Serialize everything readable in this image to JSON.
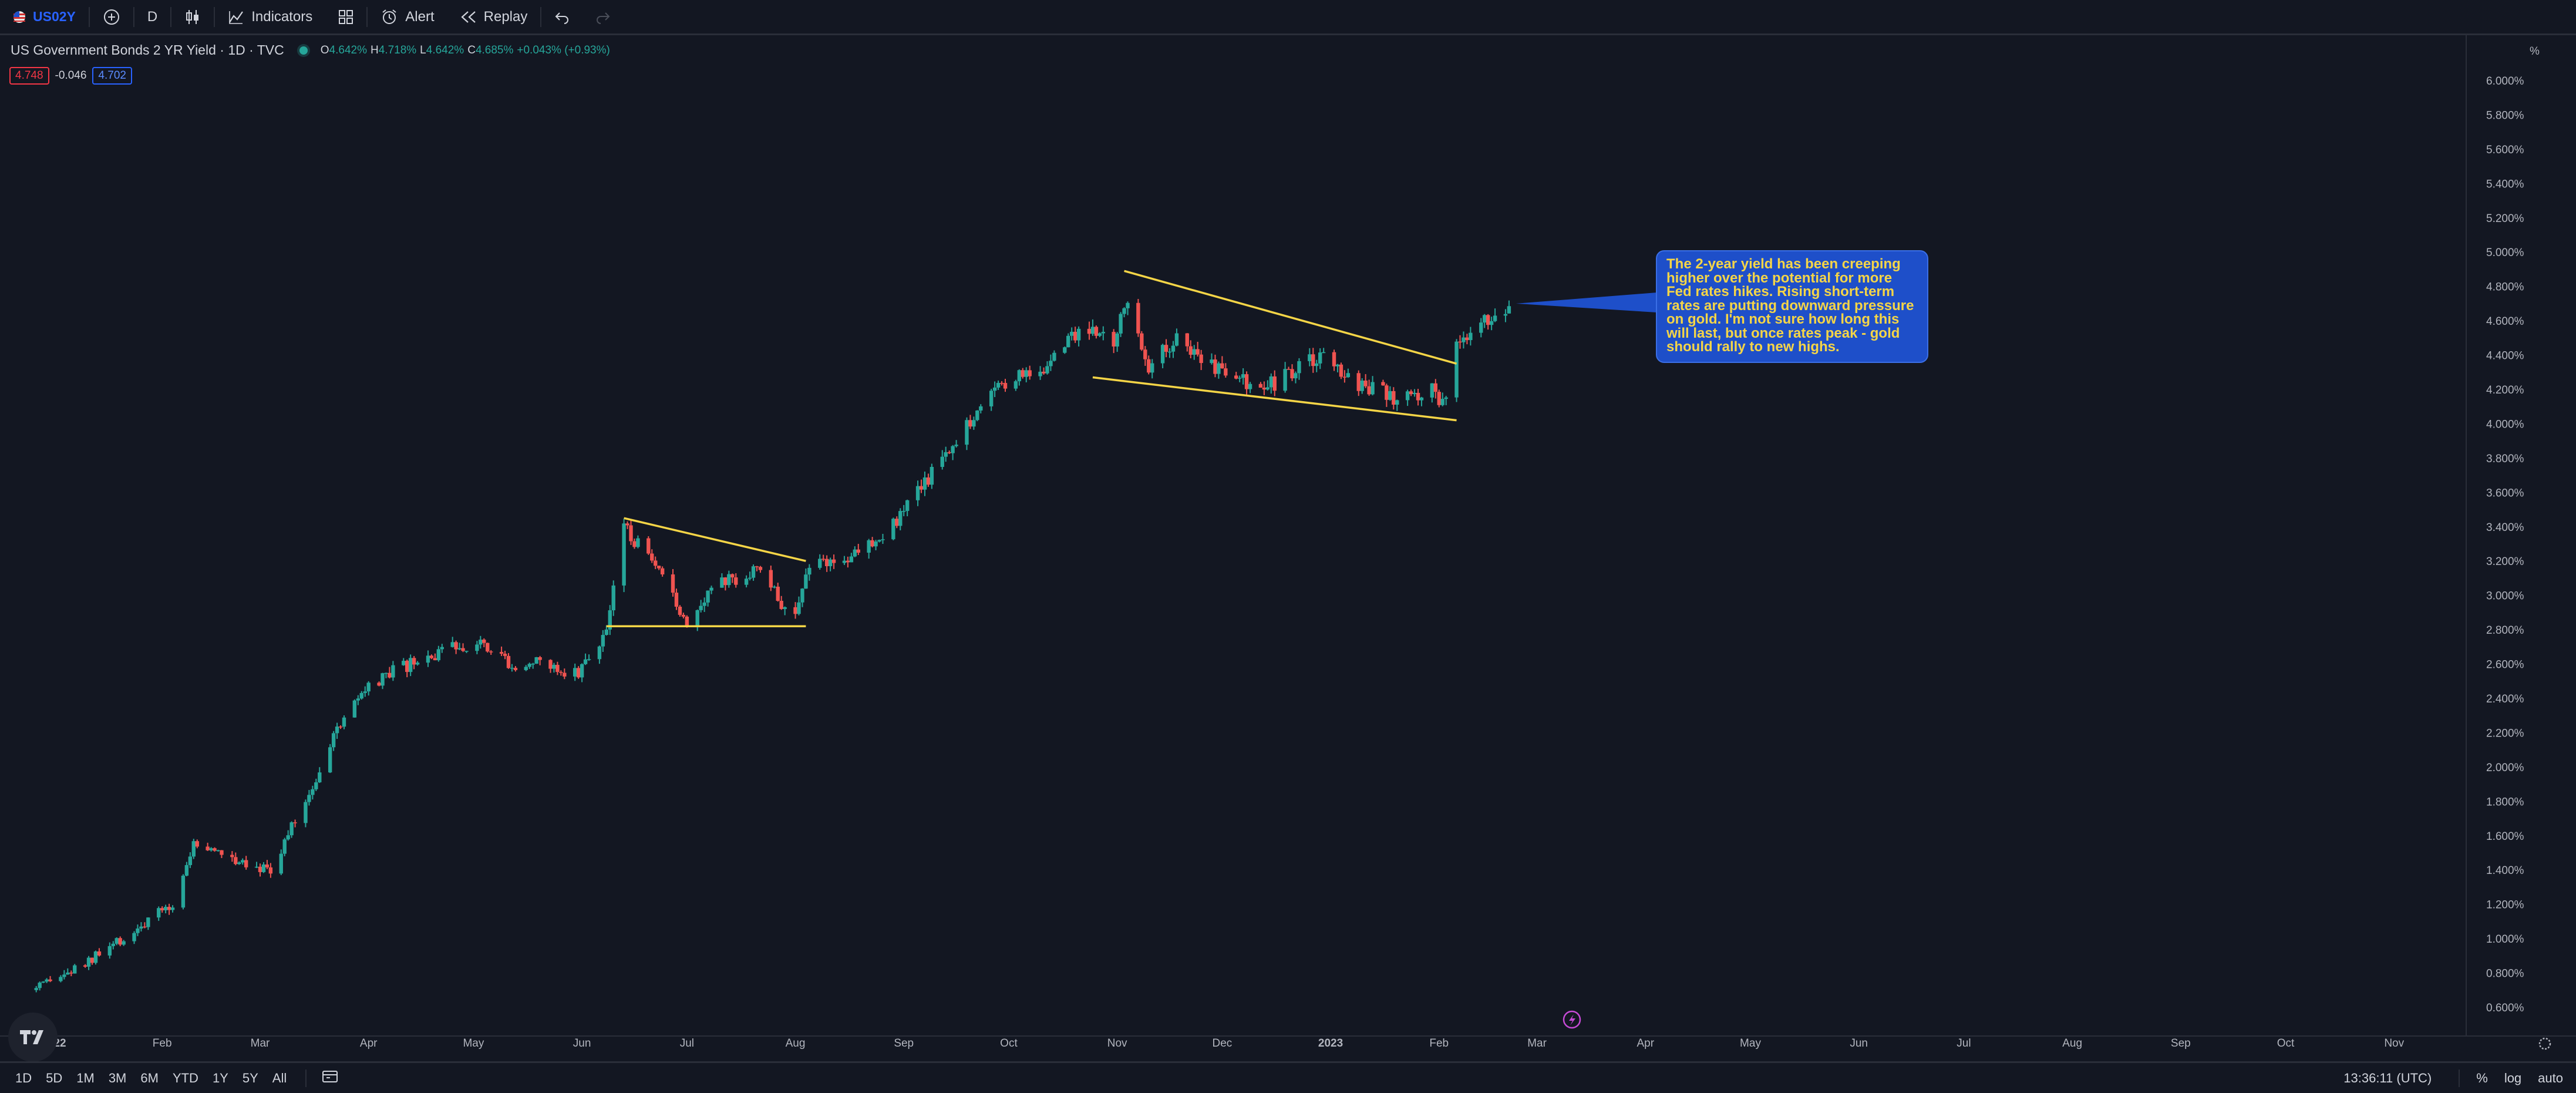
{
  "toolbar": {
    "symbol": "US02Y",
    "interval": "D",
    "indicators_label": "Indicators",
    "alert_label": "Alert",
    "replay_label": "Replay",
    "icons": [
      "add-symbol-icon",
      "candle-style-icon",
      "indicators-icon",
      "layouts-icon",
      "alert-clock-icon",
      "replay-icon",
      "undo-icon",
      "redo-icon"
    ]
  },
  "legend": {
    "title": "US Government Bonds 2 YR Yield · 1D · TVC",
    "open_label": "O",
    "open": "4.642%",
    "high_label": "H",
    "high": "4.718%",
    "low_label": "L",
    "low": "4.642%",
    "close_label": "C",
    "close": "4.685%",
    "change": "+0.043% (+0.93%)",
    "bid": "4.748",
    "spread": "-0.046",
    "ask": "4.702"
  },
  "callout": {
    "text": "The 2-year yield has been creeping higher over the potential for more Fed rates hikes. Rising short-term rates are putting downward pressure on gold. I'm not sure how long this will last, but once rates peak - gold should rally to new highs."
  },
  "price_axis": {
    "unit": "%",
    "labels": [
      "6.000%",
      "5.800%",
      "5.600%",
      "5.400%",
      "5.200%",
      "5.000%",
      "4.800%",
      "4.600%",
      "4.400%",
      "4.200%",
      "4.000%",
      "3.800%",
      "3.600%",
      "3.400%",
      "3.200%",
      "3.000%",
      "2.800%",
      "2.600%",
      "2.400%",
      "2.200%",
      "2.000%",
      "1.800%",
      "1.600%",
      "1.400%",
      "1.200%",
      "1.000%",
      "0.800%",
      "0.600%"
    ]
  },
  "time_axis": {
    "labels": [
      "2022",
      "Feb",
      "Mar",
      "Apr",
      "May",
      "Jun",
      "Jul",
      "Aug",
      "Sep",
      "Oct",
      "Nov",
      "Dec",
      "2023",
      "Feb",
      "Mar",
      "Apr",
      "May",
      "Jun",
      "Jul",
      "Aug",
      "Sep",
      "Oct",
      "Nov"
    ]
  },
  "bottom": {
    "ranges": [
      "1D",
      "5D",
      "1M",
      "3M",
      "6M",
      "YTD",
      "1Y",
      "5Y",
      "All"
    ],
    "clock": "13:36:11 (UTC)",
    "percent_label": "%",
    "log_label": "log",
    "auto_label": "auto"
  },
  "colors": {
    "up": "#26a69a",
    "down": "#ef5350",
    "trendline": "#f5d547",
    "background": "#131722",
    "callout": "#1e4fc9"
  },
  "chart_data": {
    "type": "candlestick",
    "ylim": [
      0.5,
      6.1
    ],
    "x_range": [
      "2021-12-20",
      "2023-11-30"
    ],
    "grid": false,
    "anchors": [
      [
        "2021-12-27",
        0.7
      ],
      [
        "2022-01-10",
        0.85
      ],
      [
        "2022-01-21",
        1.0
      ],
      [
        "2022-02-04",
        1.2
      ],
      [
        "2022-02-10",
        1.55
      ],
      [
        "2022-02-17",
        1.5
      ],
      [
        "2022-02-25",
        1.45
      ],
      [
        "2022-03-04",
        1.4
      ],
      [
        "2022-03-15",
        1.85
      ],
      [
        "2022-03-25",
        2.3
      ],
      [
        "2022-04-01",
        2.45
      ],
      [
        "2022-04-08",
        2.55
      ],
      [
        "2022-04-20",
        2.65
      ],
      [
        "2022-05-03",
        2.75
      ],
      [
        "2022-05-12",
        2.6
      ],
      [
        "2022-05-20",
        2.6
      ],
      [
        "2022-05-31",
        2.55
      ],
      [
        "2022-06-08",
        2.8
      ],
      [
        "2022-06-13",
        3.4
      ],
      [
        "2022-06-22",
        3.15
      ],
      [
        "2022-07-01",
        2.85
      ],
      [
        "2022-07-08",
        3.05
      ],
      [
        "2022-07-21",
        3.15
      ],
      [
        "2022-08-01",
        2.85
      ],
      [
        "2022-08-05",
        3.2
      ],
      [
        "2022-08-15",
        3.2
      ],
      [
        "2022-08-31",
        3.45
      ],
      [
        "2022-09-15",
        3.9
      ],
      [
        "2022-09-29",
        4.25
      ],
      [
        "2022-10-10",
        4.3
      ],
      [
        "2022-10-21",
        4.55
      ],
      [
        "2022-10-31",
        4.5
      ],
      [
        "2022-11-04",
        4.7
      ],
      [
        "2022-11-10",
        4.35
      ],
      [
        "2022-11-18",
        4.5
      ],
      [
        "2022-12-01",
        4.3
      ],
      [
        "2022-12-13",
        4.2
      ],
      [
        "2022-12-30",
        4.4
      ],
      [
        "2023-01-06",
        4.25
      ],
      [
        "2023-01-19",
        4.15
      ],
      [
        "2023-01-31",
        4.2
      ],
      [
        "2023-02-02",
        4.1
      ],
      [
        "2023-02-06",
        4.45
      ],
      [
        "2023-02-10",
        4.5
      ],
      [
        "2023-02-16",
        4.62
      ],
      [
        "2023-02-21",
        4.685
      ]
    ],
    "last": {
      "open": 4.642,
      "high": 4.718,
      "low": 4.642,
      "close": 4.685
    },
    "trendlines": [
      {
        "from": [
          "2022-06-13",
          3.45
        ],
        "to": [
          "2022-08-04",
          3.2
        ]
      },
      {
        "from": [
          "2022-06-08",
          2.82
        ],
        "to": [
          "2022-08-04",
          2.82
        ]
      },
      {
        "from": [
          "2022-11-03",
          4.89
        ],
        "to": [
          "2023-02-06",
          4.35
        ]
      },
      {
        "from": [
          "2022-10-25",
          4.27
        ],
        "to": [
          "2023-02-06",
          4.02
        ]
      }
    ],
    "callout_pointer": [
      "2023-02-23",
      4.7
    ]
  }
}
